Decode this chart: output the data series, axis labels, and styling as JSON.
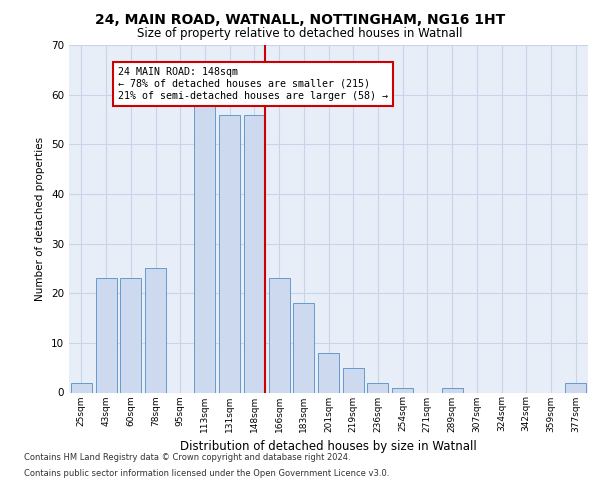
{
  "title_line1": "24, MAIN ROAD, WATNALL, NOTTINGHAM, NG16 1HT",
  "title_line2": "Size of property relative to detached houses in Watnall",
  "xlabel": "Distribution of detached houses by size in Watnall",
  "ylabel": "Number of detached properties",
  "categories": [
    "25sqm",
    "43sqm",
    "60sqm",
    "78sqm",
    "95sqm",
    "113sqm",
    "131sqm",
    "148sqm",
    "166sqm",
    "183sqm",
    "201sqm",
    "219sqm",
    "236sqm",
    "254sqm",
    "271sqm",
    "289sqm",
    "307sqm",
    "324sqm",
    "342sqm",
    "359sqm",
    "377sqm"
  ],
  "values": [
    2,
    23,
    23,
    25,
    0,
    58,
    56,
    56,
    23,
    18,
    8,
    5,
    2,
    1,
    0,
    1,
    0,
    0,
    0,
    0,
    2
  ],
  "bar_color": "#ccd9ee",
  "bar_edge_color": "#6699cc",
  "highlight_index": 7,
  "highlight_color": "#cc0000",
  "annotation_text": "24 MAIN ROAD: 148sqm\n← 78% of detached houses are smaller (215)\n21% of semi-detached houses are larger (58) →",
  "annotation_box_color": "#ffffff",
  "annotation_box_edge": "#cc0000",
  "ylim": [
    0,
    70
  ],
  "yticks": [
    0,
    10,
    20,
    30,
    40,
    50,
    60,
    70
  ],
  "grid_color": "#c8d4e8",
  "background_color": "#e8eef8",
  "footer_line1": "Contains HM Land Registry data © Crown copyright and database right 2024.",
  "footer_line2": "Contains public sector information licensed under the Open Government Licence v3.0."
}
